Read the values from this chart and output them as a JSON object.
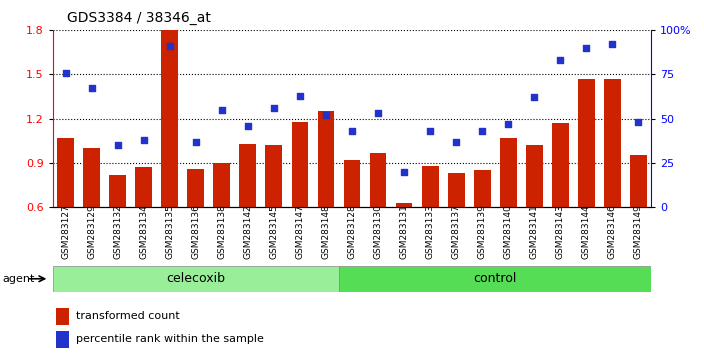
{
  "title": "GDS3384 / 38346_at",
  "samples": [
    "GSM283127",
    "GSM283129",
    "GSM283132",
    "GSM283134",
    "GSM283135",
    "GSM283136",
    "GSM283138",
    "GSM283142",
    "GSM283145",
    "GSM283147",
    "GSM283148",
    "GSM283128",
    "GSM283130",
    "GSM283131",
    "GSM283133",
    "GSM283137",
    "GSM283139",
    "GSM283140",
    "GSM283141",
    "GSM283143",
    "GSM283144",
    "GSM283146",
    "GSM283149"
  ],
  "transformed_count": [
    1.07,
    1.0,
    0.82,
    0.87,
    1.8,
    0.86,
    0.9,
    1.03,
    1.02,
    1.18,
    1.25,
    0.92,
    0.97,
    0.63,
    0.88,
    0.83,
    0.85,
    1.07,
    1.02,
    1.17,
    1.47,
    1.47,
    0.95
  ],
  "percentile_rank": [
    76,
    67,
    35,
    38,
    91,
    37,
    55,
    46,
    56,
    63,
    52,
    43,
    53,
    20,
    43,
    37,
    43,
    47,
    62,
    83,
    90,
    92,
    48
  ],
  "celecoxib_count": 11,
  "control_count": 12,
  "ylim_left": [
    0.6,
    1.8
  ],
  "ylim_right": [
    0,
    100
  ],
  "yticks_left": [
    0.6,
    0.9,
    1.2,
    1.5,
    1.8
  ],
  "yticks_right": [
    0,
    25,
    50,
    75,
    100
  ],
  "bar_color": "#cc2200",
  "dot_color": "#2233cc",
  "celecoxib_color": "#99ee99",
  "control_color": "#55dd55",
  "agent_label": "agent",
  "celecoxib_label": "celecoxib",
  "control_label": "control",
  "legend_bar_label": "transformed count",
  "legend_dot_label": "percentile rank within the sample"
}
